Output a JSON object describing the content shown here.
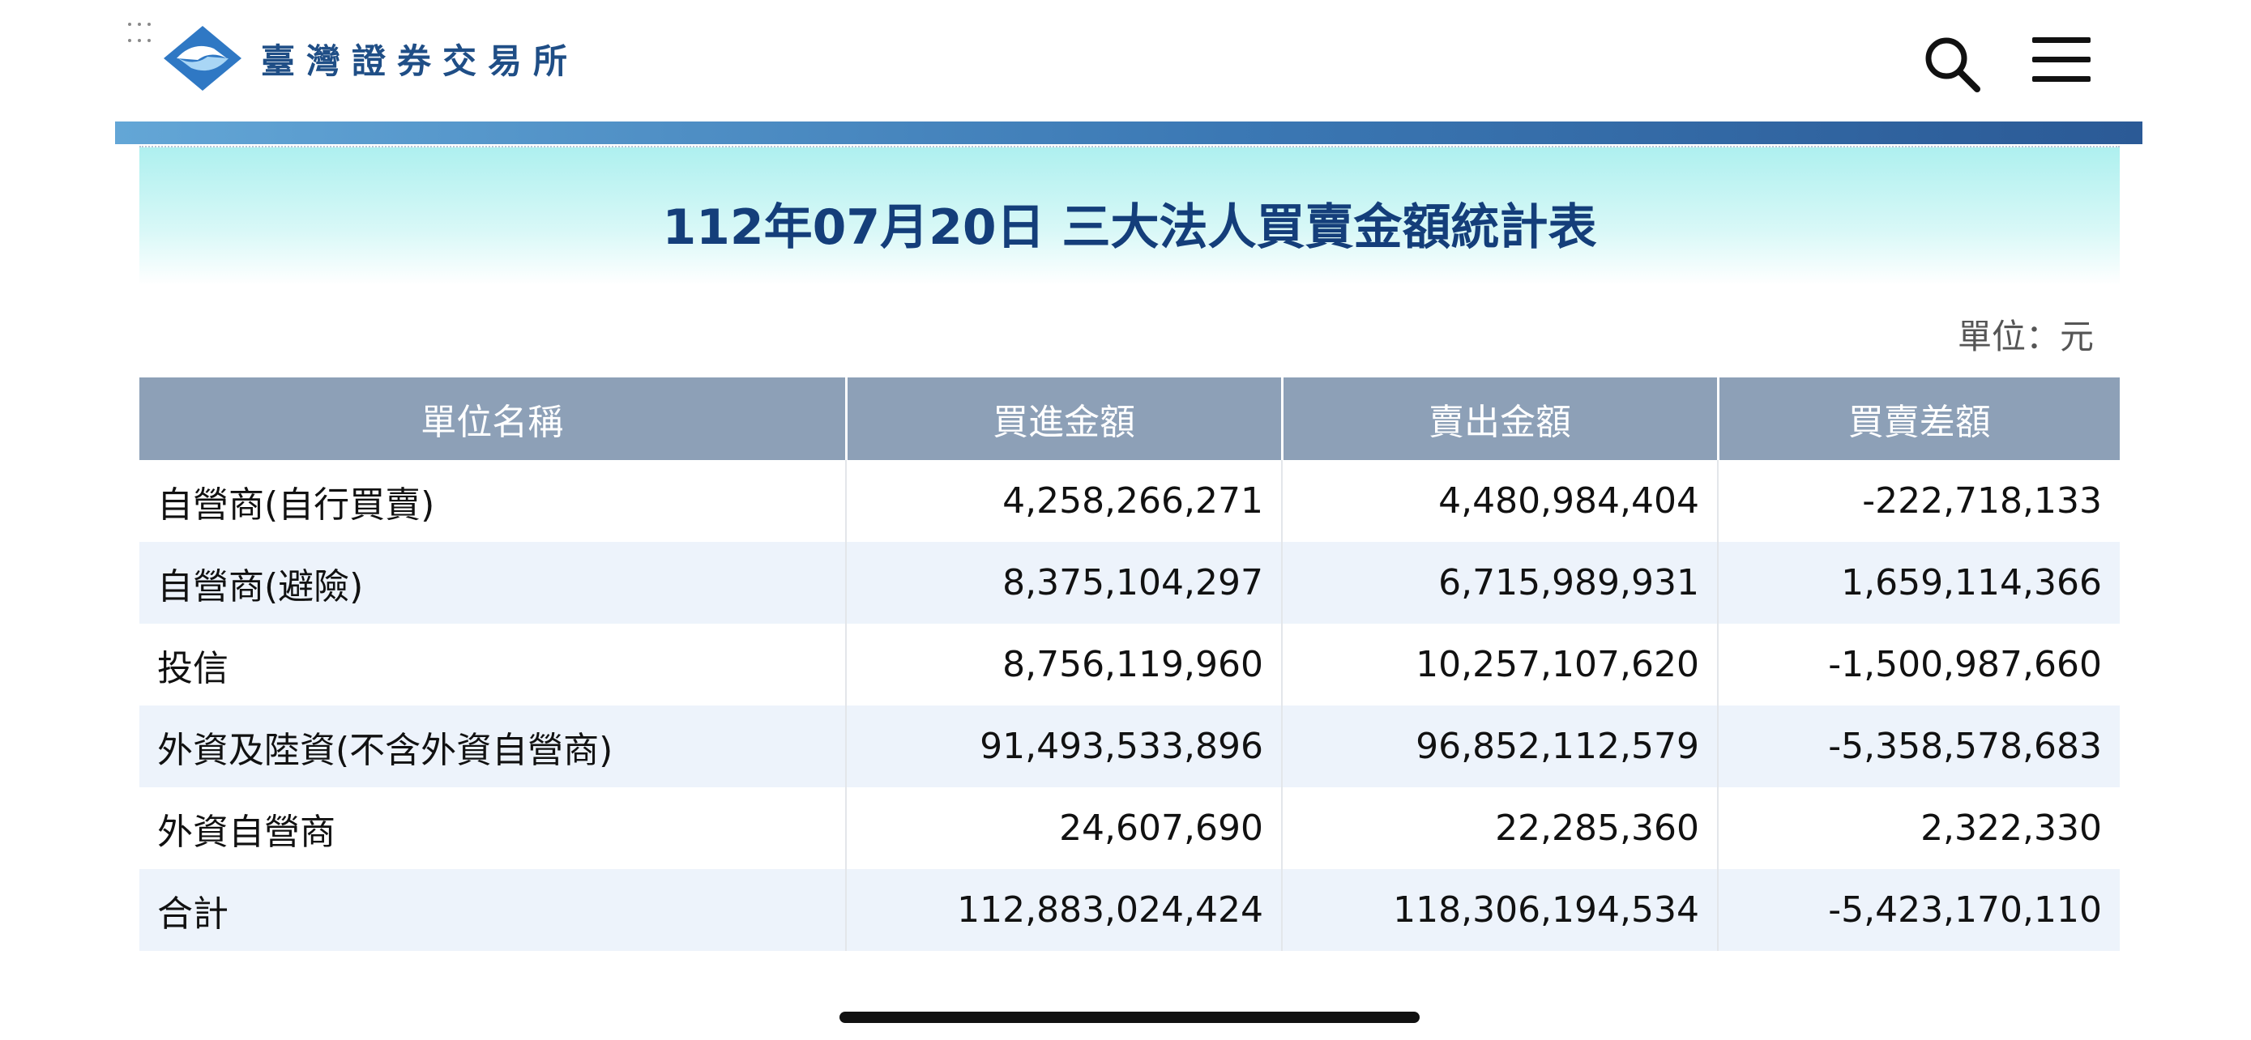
{
  "header": {
    "logo_text": "臺灣證券交易所",
    "search_icon": "search-icon",
    "menu_icon": "hamburger-menu-icon"
  },
  "colors": {
    "title": "#143e7a",
    "header_row": "#8da0b7",
    "accent_bar": "#3b78b4",
    "band": "#aef0ef"
  },
  "report": {
    "title": "112年07月20日 三大法人買賣金額統計表",
    "unit": "單位：元"
  },
  "table": {
    "columns": [
      "單位名稱",
      "買進金額",
      "賣出金額",
      "買賣差額"
    ],
    "rows": [
      {
        "name": "自營商(自行買賣)",
        "buy": "4,258,266,271",
        "sell": "4,480,984,404",
        "diff": "-222,718,133"
      },
      {
        "name": "自營商(避險)",
        "buy": "8,375,104,297",
        "sell": "6,715,989,931",
        "diff": "1,659,114,366"
      },
      {
        "name": "投信",
        "buy": "8,756,119,960",
        "sell": "10,257,107,620",
        "diff": "-1,500,987,660"
      },
      {
        "name": "外資及陸資(不含外資自營商)",
        "buy": "91,493,533,896",
        "sell": "96,852,112,579",
        "diff": "-5,358,578,683"
      },
      {
        "name": "外資自營商",
        "buy": "24,607,690",
        "sell": "22,285,360",
        "diff": "2,322,330"
      },
      {
        "name": "合計",
        "buy": "112,883,024,424",
        "sell": "118,306,194,534",
        "diff": "-5,423,170,110"
      }
    ]
  }
}
